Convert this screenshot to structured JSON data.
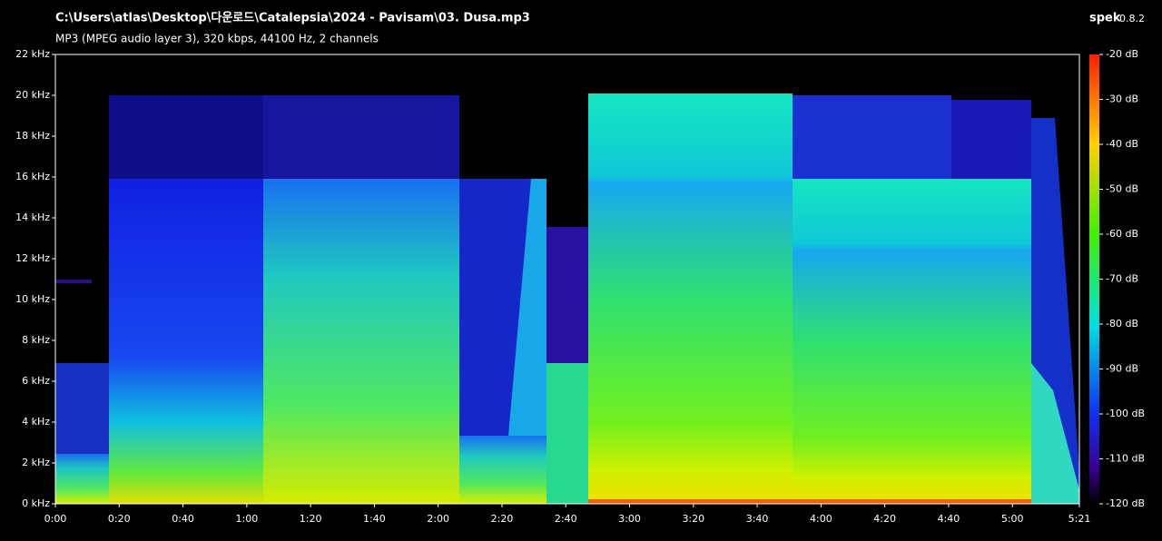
{
  "chart_data": {
    "type": "spectrogram",
    "title": "C:\\Users\\atlas\\Desktop\\다운로드\\Catalepsia\\2024 - Pavisam\\03. Dusa.mp3",
    "subtitle": "MP3 (MPEG audio layer 3), 320 kbps, 44100 Hz, 2 channels",
    "app": "spek",
    "version": "0.8.2",
    "xlim": [
      0,
      321
    ],
    "xticks": [
      {
        "value": 0,
        "label": "0:00"
      },
      {
        "value": 20,
        "label": "0:20"
      },
      {
        "value": 40,
        "label": "0:40"
      },
      {
        "value": 60,
        "label": "1:00"
      },
      {
        "value": 80,
        "label": "1:20"
      },
      {
        "value": 100,
        "label": "1:40"
      },
      {
        "value": 120,
        "label": "2:00"
      },
      {
        "value": 140,
        "label": "2:20"
      },
      {
        "value": 160,
        "label": "2:40"
      },
      {
        "value": 180,
        "label": "3:00"
      },
      {
        "value": 200,
        "label": "3:20"
      },
      {
        "value": 220,
        "label": "3:40"
      },
      {
        "value": 240,
        "label": "4:00"
      },
      {
        "value": 260,
        "label": "4:20"
      },
      {
        "value": 280,
        "label": "4:40"
      },
      {
        "value": 300,
        "label": "5:00"
      },
      {
        "value": 321,
        "label": "5:21"
      }
    ],
    "ylim": [
      0,
      22
    ],
    "yticks": [
      {
        "value": 0,
        "label": "0 kHz"
      },
      {
        "value": 2,
        "label": "2 kHz"
      },
      {
        "value": 4,
        "label": "4 kHz"
      },
      {
        "value": 6,
        "label": "6 kHz"
      },
      {
        "value": 8,
        "label": "8 kHz"
      },
      {
        "value": 10,
        "label": "10 kHz"
      },
      {
        "value": 12,
        "label": "12 kHz"
      },
      {
        "value": 14,
        "label": "14 kHz"
      },
      {
        "value": 16,
        "label": "16 kHz"
      },
      {
        "value": 18,
        "label": "18 kHz"
      },
      {
        "value": 20,
        "label": "20 kHz"
      },
      {
        "value": 22,
        "label": "22 kHz"
      }
    ],
    "zlim": [
      -120,
      -20
    ],
    "zticks": [
      {
        "value": -20,
        "label": "-20 dB"
      },
      {
        "value": -30,
        "label": "-30 dB"
      },
      {
        "value": -40,
        "label": "-40 dB"
      },
      {
        "value": -50,
        "label": "-50 dB"
      },
      {
        "value": -60,
        "label": "-60 dB"
      },
      {
        "value": -70,
        "label": "-70 dB"
      },
      {
        "value": -80,
        "label": "-80 dB"
      },
      {
        "value": -90,
        "label": "-90 dB"
      },
      {
        "value": -100,
        "label": "-100 dB"
      },
      {
        "value": -110,
        "label": "-110 dB"
      },
      {
        "value": -120,
        "label": "-120 dB"
      }
    ]
  }
}
